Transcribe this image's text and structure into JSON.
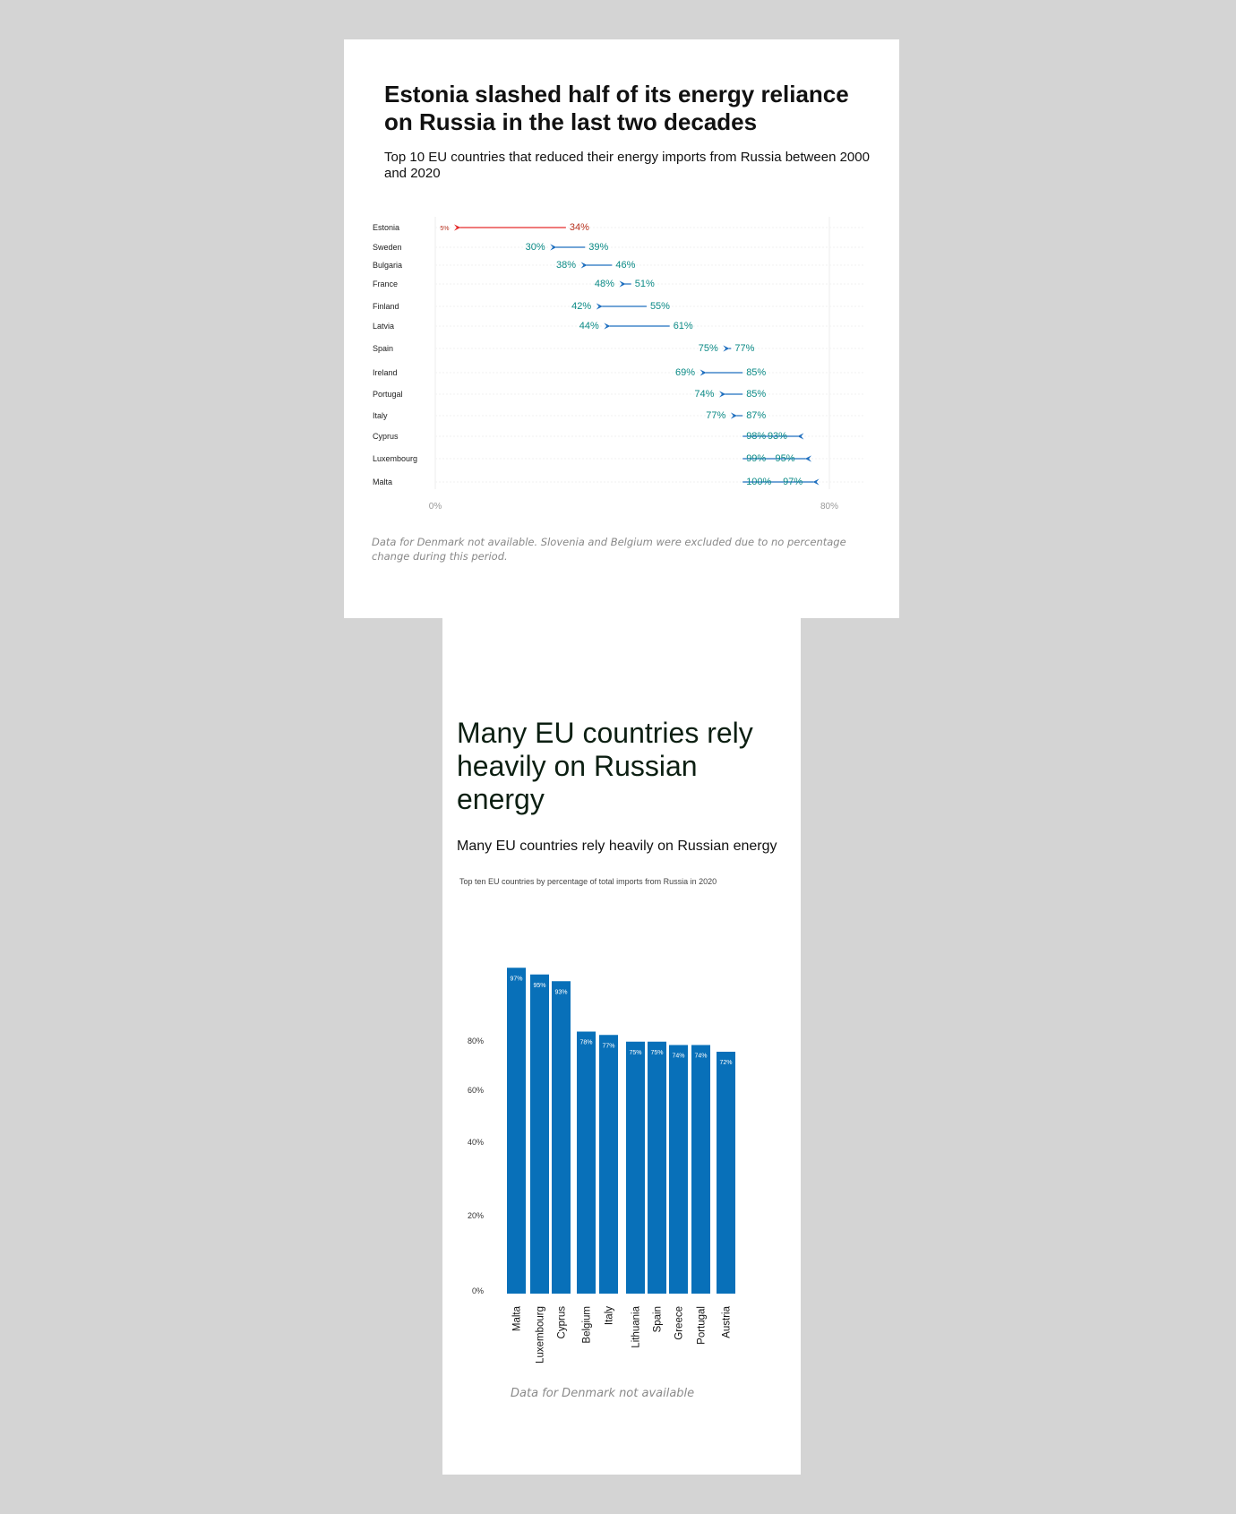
{
  "chart1": {
    "title": "Estonia slashed half of its energy reliance on Russia in the last two decades",
    "subtitle": "Top 10 EU countries that reduced their energy imports from Russia between 2000 and 2020",
    "note": "Data for Denmark not available. Slovenia and Belgium were excluded due to no percentage change during this period.",
    "highlight_color": "#e52b2b",
    "arrow_color": "#1f6fbf",
    "label_color": "#0b8a86"
  },
  "chart2": {
    "title": "Many EU countries rely heavily on Russian energy",
    "subtitle": "Many EU countries rely heavily on Russian energy",
    "subtitle2": "Top ten EU countries by percentage of total imports from Russia in 2020",
    "note": "Data for Denmark not available",
    "bar_color": "#0870b9"
  },
  "chart_data": [
    {
      "type": "dumbbell-arrow",
      "title": "Estonia slashed half of its energy reliance on Russia in the last two decades",
      "subtitle": "Top 10 EU countries that reduced their energy imports from Russia between 2000 and 2020",
      "xlim": [
        0,
        80
      ],
      "x_tick_labels": [
        "0%",
        "80%"
      ],
      "categories": [
        "Estonia",
        "Sweden",
        "Bulgaria",
        "France",
        "Finland",
        "Latvia",
        "Spain",
        "Ireland",
        "Portugal",
        "Italy",
        "Cyprus",
        "Luxembourg",
        "Malta"
      ],
      "series": [
        {
          "name": "2000",
          "values": [
            34,
            39,
            46,
            51,
            55,
            61,
            77,
            85,
            85,
            87,
            98,
            99,
            100
          ]
        },
        {
          "name": "2020",
          "values": [
            5,
            30,
            38,
            48,
            42,
            44,
            75,
            69,
            74,
            77,
            93,
            95,
            97
          ]
        }
      ],
      "start_labels": [
        "34%",
        "39%",
        "46%",
        "51%",
        "55%",
        "61%",
        "77%",
        "85%",
        "85%",
        "87%",
        "98%",
        "99%",
        "100%"
      ],
      "end_labels": [
        "5%",
        "30%",
        "38%",
        "48%",
        "42%",
        "44%",
        "75%",
        "69%",
        "74%",
        "77%",
        "93%",
        "95%",
        "97%"
      ]
    },
    {
      "type": "bar",
      "title": "Many EU countries rely heavily on Russian energy",
      "subtitle": "Top ten EU countries by percentage of total imports from Russia in 2020",
      "categories": [
        "Malta",
        "Luxembourg",
        "Cyprus",
        "Belgium",
        "Italy",
        "Lithuania",
        "Spain",
        "Greece",
        "Portugal",
        "Austria"
      ],
      "values": [
        97,
        95,
        93,
        78,
        77,
        75,
        75,
        74,
        74,
        72
      ],
      "value_labels": [
        "97%",
        "95%",
        "93%",
        "78%",
        "77%",
        "75%",
        "75%",
        "74%",
        "74%",
        "72%"
      ],
      "y_tick_labels": [
        "0%",
        "20%",
        "40%",
        "60%",
        "80%"
      ],
      "ylim": [
        0,
        100
      ],
      "grid": false
    }
  ]
}
